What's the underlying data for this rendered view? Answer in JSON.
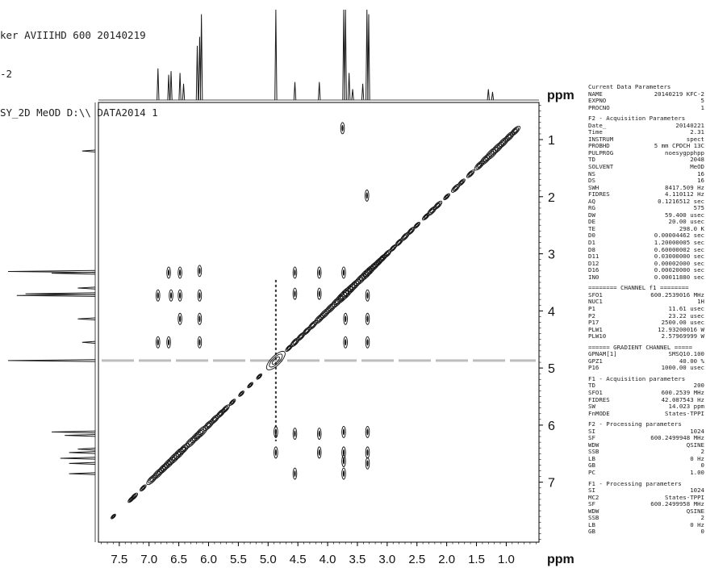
{
  "header": {
    "line1": "ker AVIIIHD 600 20140219",
    "line2": "-2",
    "line3": "SY_2D MeOD D:\\\\ DATA2014 1"
  },
  "chart_data": {
    "type": "heatmap",
    "subtype": "2D NOESY contour plot",
    "x_axis": {
      "label": "ppm",
      "range": [
        7.85,
        0.45
      ],
      "ticks": [
        "7.5",
        "7.0",
        "6.5",
        "6.0",
        "5.5",
        "5.0",
        "4.5",
        "4.0",
        "3.5",
        "3.0",
        "2.5",
        "2.0",
        "1.5",
        "1.0"
      ]
    },
    "y_axis": {
      "label": "ppm",
      "range": [
        0.35,
        8.05
      ],
      "ticks": [
        "1",
        "2",
        "3",
        "4",
        "5",
        "6",
        "7"
      ]
    },
    "f2_projection_peaks": [
      {
        "ppm": 6.85,
        "h": 0.35
      },
      {
        "ppm": 6.67,
        "h": 0.28
      },
      {
        "ppm": 6.63,
        "h": 0.32
      },
      {
        "ppm": 6.48,
        "h": 0.3
      },
      {
        "ppm": 6.42,
        "h": 0.18
      },
      {
        "ppm": 6.19,
        "h": 0.6
      },
      {
        "ppm": 6.15,
        "h": 0.7
      },
      {
        "ppm": 6.12,
        "h": 0.95
      },
      {
        "ppm": 4.87,
        "h": 1.0
      },
      {
        "ppm": 4.55,
        "h": 0.2
      },
      {
        "ppm": 4.14,
        "h": 0.2
      },
      {
        "ppm": 3.73,
        "h": 1.0
      },
      {
        "ppm": 3.7,
        "h": 1.0
      },
      {
        "ppm": 3.64,
        "h": 0.3
      },
      {
        "ppm": 3.58,
        "h": 0.12
      },
      {
        "ppm": 3.41,
        "h": 0.18
      },
      {
        "ppm": 3.34,
        "h": 1.0
      },
      {
        "ppm": 3.31,
        "h": 0.95
      },
      {
        "ppm": 1.3,
        "h": 0.12
      },
      {
        "ppm": 1.23,
        "h": 0.09
      }
    ],
    "f1_projection_peaks": [
      {
        "ppm": 1.2,
        "h": 0.15
      },
      {
        "ppm": 3.31,
        "h": 1.0
      },
      {
        "ppm": 3.34,
        "h": 0.5
      },
      {
        "ppm": 3.6,
        "h": 0.2
      },
      {
        "ppm": 3.7,
        "h": 0.8
      },
      {
        "ppm": 3.73,
        "h": 0.9
      },
      {
        "ppm": 4.14,
        "h": 0.2
      },
      {
        "ppm": 4.55,
        "h": 0.15
      },
      {
        "ppm": 4.87,
        "h": 1.0
      },
      {
        "ppm": 6.12,
        "h": 0.5
      },
      {
        "ppm": 6.18,
        "h": 0.35
      },
      {
        "ppm": 6.42,
        "h": 0.2
      },
      {
        "ppm": 6.48,
        "h": 0.3
      },
      {
        "ppm": 6.58,
        "h": 0.4
      },
      {
        "ppm": 6.67,
        "h": 0.3
      },
      {
        "ppm": 6.85,
        "h": 0.3
      }
    ],
    "diagonal_peaks": [
      {
        "ppm": 0.85,
        "s": 1.0
      },
      {
        "ppm": 0.95,
        "s": 1.1
      },
      {
        "ppm": 1.05,
        "s": 1.2
      },
      {
        "ppm": 1.15,
        "s": 1.3
      },
      {
        "ppm": 1.25,
        "s": 1.4
      },
      {
        "ppm": 1.35,
        "s": 1.2
      },
      {
        "ppm": 1.45,
        "s": 1.0
      },
      {
        "ppm": 1.6,
        "s": 0.7
      },
      {
        "ppm": 1.75,
        "s": 0.6
      },
      {
        "ppm": 1.85,
        "s": 0.8
      },
      {
        "ppm": 2.0,
        "s": 0.5
      },
      {
        "ppm": 2.15,
        "s": 0.8
      },
      {
        "ppm": 2.25,
        "s": 0.9
      },
      {
        "ppm": 2.35,
        "s": 0.6
      },
      {
        "ppm": 2.5,
        "s": 0.5
      },
      {
        "ppm": 2.6,
        "s": 0.7
      },
      {
        "ppm": 2.7,
        "s": 0.8
      },
      {
        "ppm": 2.8,
        "s": 0.7
      },
      {
        "ppm": 2.9,
        "s": 0.6
      },
      {
        "ppm": 3.0,
        "s": 0.8
      },
      {
        "ppm": 3.08,
        "s": 0.9
      },
      {
        "ppm": 3.15,
        "s": 1.0
      },
      {
        "ppm": 3.22,
        "s": 1.1
      },
      {
        "ppm": 3.3,
        "s": 1.3
      },
      {
        "ppm": 3.36,
        "s": 1.4
      },
      {
        "ppm": 3.45,
        "s": 1.3
      },
      {
        "ppm": 3.55,
        "s": 1.3
      },
      {
        "ppm": 3.62,
        "s": 1.4
      },
      {
        "ppm": 3.7,
        "s": 1.6
      },
      {
        "ppm": 3.76,
        "s": 1.5
      },
      {
        "ppm": 3.85,
        "s": 1.3
      },
      {
        "ppm": 3.95,
        "s": 1.2
      },
      {
        "ppm": 4.05,
        "s": 1.2
      },
      {
        "ppm": 4.14,
        "s": 1.1
      },
      {
        "ppm": 4.25,
        "s": 0.9
      },
      {
        "ppm": 4.35,
        "s": 0.8
      },
      {
        "ppm": 4.45,
        "s": 0.8
      },
      {
        "ppm": 4.55,
        "s": 0.9
      },
      {
        "ppm": 4.65,
        "s": 0.6
      },
      {
        "ppm": 4.87,
        "s": 2.2
      },
      {
        "ppm": 5.15,
        "s": 0.4
      },
      {
        "ppm": 5.3,
        "s": 0.4
      },
      {
        "ppm": 5.45,
        "s": 0.4
      },
      {
        "ppm": 5.6,
        "s": 0.5
      },
      {
        "ppm": 5.72,
        "s": 0.8
      },
      {
        "ppm": 5.8,
        "s": 0.9
      },
      {
        "ppm": 5.9,
        "s": 1.0
      },
      {
        "ppm": 6.0,
        "s": 1.1
      },
      {
        "ppm": 6.12,
        "s": 1.4
      },
      {
        "ppm": 6.2,
        "s": 1.3
      },
      {
        "ppm": 6.3,
        "s": 1.3
      },
      {
        "ppm": 6.42,
        "s": 1.2
      },
      {
        "ppm": 6.5,
        "s": 1.4
      },
      {
        "ppm": 6.58,
        "s": 1.4
      },
      {
        "ppm": 6.67,
        "s": 1.3
      },
      {
        "ppm": 6.76,
        "s": 1.2
      },
      {
        "ppm": 6.85,
        "s": 1.2
      },
      {
        "ppm": 6.95,
        "s": 1.1
      },
      {
        "ppm": 7.1,
        "s": 0.5
      },
      {
        "ppm": 7.25,
        "s": 0.6
      },
      {
        "ppm": 7.3,
        "s": 0.5
      },
      {
        "ppm": 7.6,
        "s": 0.3
      }
    ],
    "cross_peaks": [
      {
        "x": 6.85,
        "y": 3.73
      },
      {
        "x": 6.63,
        "y": 3.73
      },
      {
        "x": 6.48,
        "y": 3.73
      },
      {
        "x": 6.15,
        "y": 3.73
      },
      {
        "x": 6.67,
        "y": 3.33
      },
      {
        "x": 6.48,
        "y": 3.33
      },
      {
        "x": 6.15,
        "y": 3.3
      },
      {
        "x": 6.48,
        "y": 4.14
      },
      {
        "x": 6.15,
        "y": 4.14
      },
      {
        "x": 6.15,
        "y": 4.55
      },
      {
        "x": 6.67,
        "y": 4.55
      },
      {
        "x": 6.85,
        "y": 4.55
      },
      {
        "x": 3.73,
        "y": 6.85
      },
      {
        "x": 3.73,
        "y": 6.63
      },
      {
        "x": 3.73,
        "y": 6.48
      },
      {
        "x": 3.73,
        "y": 6.12
      },
      {
        "x": 3.33,
        "y": 6.67
      },
      {
        "x": 3.33,
        "y": 6.48
      },
      {
        "x": 3.33,
        "y": 6.12
      },
      {
        "x": 4.14,
        "y": 6.48
      },
      {
        "x": 4.14,
        "y": 6.15
      },
      {
        "x": 4.55,
        "y": 6.15
      },
      {
        "x": 4.55,
        "y": 6.85
      },
      {
        "x": 4.87,
        "y": 6.12
      },
      {
        "x": 4.87,
        "y": 6.48
      },
      {
        "x": 3.7,
        "y": 4.14
      },
      {
        "x": 3.7,
        "y": 4.55
      },
      {
        "x": 3.33,
        "y": 4.14
      },
      {
        "x": 3.33,
        "y": 4.55
      },
      {
        "x": 4.14,
        "y": 3.7
      },
      {
        "x": 4.55,
        "y": 3.7
      },
      {
        "x": 4.55,
        "y": 3.33
      },
      {
        "x": 4.14,
        "y": 3.33
      },
      {
        "x": 3.75,
        "y": 0.8
      },
      {
        "x": 3.34,
        "y": 1.98
      },
      {
        "x": 3.33,
        "y": 3.73
      },
      {
        "x": 3.73,
        "y": 3.33
      }
    ],
    "noise_band_ppm": 4.87,
    "colors": {
      "contour": "#111111",
      "projection": "#1a1a1a",
      "frame": "#000000"
    }
  },
  "params": [
    {
      "title": "Current Data Parameters",
      "rows": [
        [
          "NAME",
          "20140219 KFC-2"
        ],
        [
          "EXPNO",
          "5"
        ],
        [
          "PROCNO",
          "1"
        ]
      ]
    },
    {
      "title": "F2 - Acquisition Parameters",
      "rows": [
        [
          "Date_",
          "20140221"
        ],
        [
          "Time",
          "2.31"
        ],
        [
          "INSTRUM",
          "spect"
        ],
        [
          "PROBHD",
          "5 mm CPDCH 13C"
        ],
        [
          "PULPROG",
          "noesygpphpp"
        ],
        [
          "TD",
          "2048"
        ],
        [
          "SOLVENT",
          "MeOD"
        ],
        [
          "NS",
          "16"
        ],
        [
          "DS",
          "16"
        ],
        [
          "SWH",
          "8417.509 Hz"
        ],
        [
          "FIDRES",
          "4.110112 Hz"
        ],
        [
          "AQ",
          "0.1216512 sec"
        ],
        [
          "RG",
          "575"
        ],
        [
          "DW",
          "59.400 usec"
        ],
        [
          "DE",
          "20.00 usec"
        ],
        [
          "TE",
          "298.0 K"
        ],
        [
          "D0",
          "0.00004462 sec"
        ],
        [
          "D1",
          "1.20000005 sec"
        ],
        [
          "D8",
          "0.60000002 sec"
        ],
        [
          "D11",
          "0.03000000 sec"
        ],
        [
          "D12",
          "0.00002000 sec"
        ],
        [
          "D16",
          "0.00020000 sec"
        ],
        [
          "IN0",
          "0.00011880 sec"
        ]
      ]
    },
    {
      "title": "======== CHANNEL f1 ========",
      "rows": [
        [
          "SFO1",
          "600.2539016 MHz"
        ],
        [
          "NUC1",
          "1H"
        ],
        [
          "P1",
          "11.61 usec"
        ],
        [
          "P2",
          "23.22 usec"
        ],
        [
          "P17",
          "2500.00 usec"
        ],
        [
          "PLW1",
          "12.93200016 W"
        ],
        [
          "PLW10",
          "2.57969999 W"
        ]
      ]
    },
    {
      "title": "====== GRADIENT CHANNEL =====",
      "rows": [
        [
          "GPNAM[1]",
          "SMSQ10.100"
        ],
        [
          "GPZ1",
          "40.00 %"
        ],
        [
          "P16",
          "1000.00 usec"
        ]
      ]
    },
    {
      "title": "F1 - Acquisition parameters",
      "rows": [
        [
          "TD",
          "200"
        ],
        [
          "SFO1",
          "600.2539 MHz"
        ],
        [
          "FIDRES",
          "42.087543 Hz"
        ],
        [
          "SW",
          "14.023 ppm"
        ],
        [
          "FnMODE",
          "States-TPPI"
        ]
      ]
    },
    {
      "title": "F2 - Processing parameters",
      "rows": [
        [
          "SI",
          "1024"
        ],
        [
          "SF",
          "600.2499948 MHz"
        ],
        [
          "WDW",
          "QSINE"
        ],
        [
          "SSB",
          "2"
        ],
        [
          "LB",
          "0 Hz"
        ],
        [
          "GB",
          "0"
        ],
        [
          "PC",
          "1.00"
        ]
      ]
    },
    {
      "title": "F1 - Processing parameters",
      "rows": [
        [
          "SI",
          "1024"
        ],
        [
          "MC2",
          "States-TPPI"
        ],
        [
          "SF",
          "600.2499958 MHz"
        ],
        [
          "WDW",
          "QSINE"
        ],
        [
          "SSB",
          "2"
        ],
        [
          "LB",
          "0 Hz"
        ],
        [
          "GB",
          "0"
        ]
      ]
    }
  ]
}
